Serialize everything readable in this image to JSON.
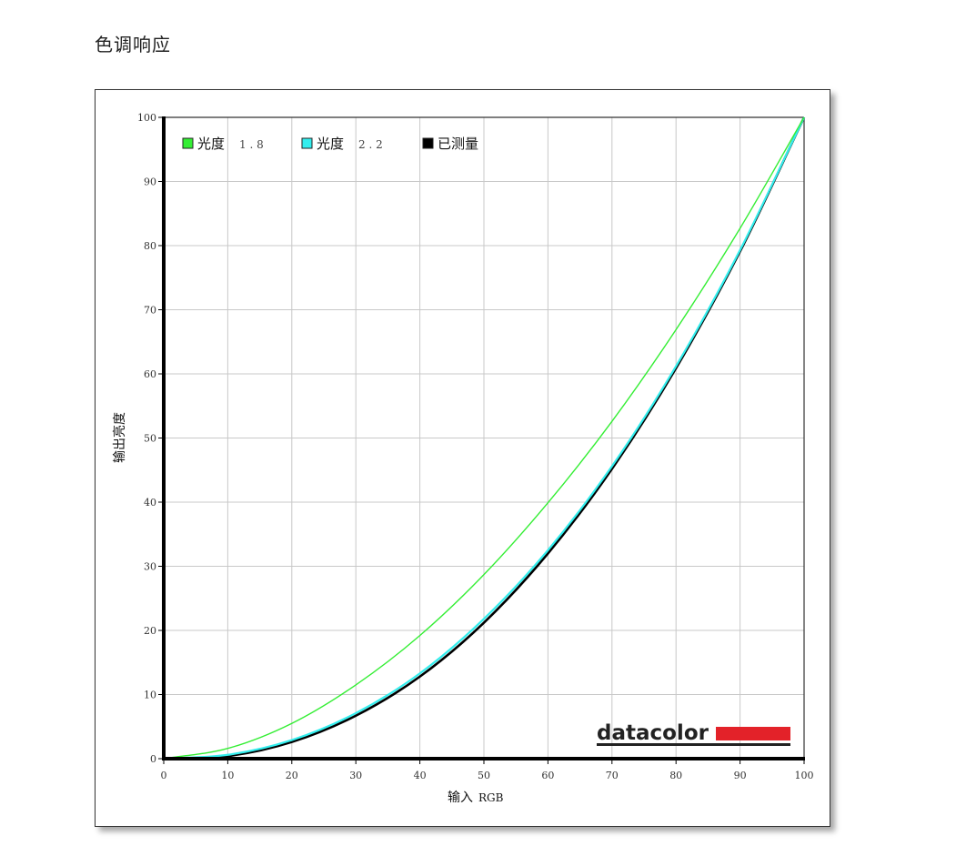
{
  "page": {
    "title": "色调响应"
  },
  "chart_data": {
    "type": "line",
    "title": "色调响应",
    "xlabel": "输入 RGB",
    "ylabel": "输出亮度",
    "xlim": [
      0,
      100
    ],
    "ylim": [
      0,
      100
    ],
    "grid": true,
    "legend_position": "top-left inside",
    "x_ticks": [
      0,
      10,
      20,
      30,
      40,
      50,
      60,
      70,
      80,
      90,
      100
    ],
    "y_ticks": [
      0,
      10,
      20,
      30,
      40,
      50,
      60,
      70,
      80,
      90,
      100
    ],
    "x": [
      0,
      10,
      20,
      30,
      40,
      50,
      60,
      70,
      80,
      90,
      100
    ],
    "series": [
      {
        "name": "光度 1.8",
        "label_main": "光度",
        "label_num": "1.8",
        "color": "#33ee33",
        "values": [
          0,
          1.6,
          5.5,
          11.5,
          19.2,
          28.7,
          39.9,
          52.6,
          66.9,
          82.7,
          100
        ]
      },
      {
        "name": "光度 2.2",
        "label_main": "光度",
        "label_num": "2.2",
        "color": "#33eeee",
        "values": [
          0,
          0.6,
          2.9,
          7.1,
          13.3,
          21.8,
          32.5,
          45.6,
          61.2,
          79.3,
          100
        ]
      },
      {
        "name": "已测量",
        "label_main": "已测量",
        "label_num": "",
        "color": "#000000",
        "values": [
          0,
          0.4,
          2.6,
          6.7,
          12.8,
          21.2,
          32.0,
          45.2,
          60.9,
          79.1,
          100
        ]
      }
    ],
    "annotations": [
      "datacolor"
    ]
  },
  "logo": {
    "text": "datacolor",
    "bar_color": "#e32229"
  },
  "colors": {
    "grid": "#c8c8c8",
    "axis": "#000000",
    "frame": "#333333"
  }
}
